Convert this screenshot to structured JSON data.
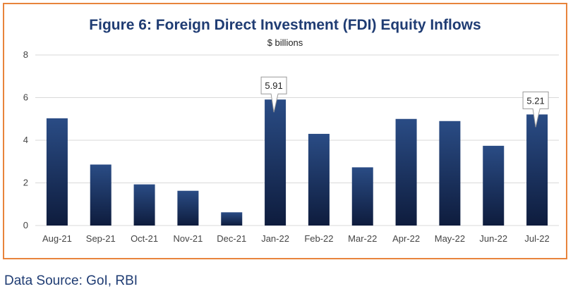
{
  "chart_data": {
    "type": "bar",
    "title": "Figure 6: Foreign Direct Investment (FDI) Equity Inflows",
    "subtitle": "$ billions",
    "categories": [
      "Aug-21",
      "Sep-21",
      "Oct-21",
      "Nov-21",
      "Dec-21",
      "Jan-22",
      "Feb-22",
      "Mar-22",
      "Apr-22",
      "May-22",
      "Jun-22",
      "Jul-22"
    ],
    "values": [
      5.03,
      2.86,
      1.93,
      1.63,
      0.62,
      5.91,
      4.3,
      2.73,
      5.0,
      4.9,
      3.74,
      5.21
    ],
    "ylim": [
      0,
      8
    ],
    "yticks": [
      0,
      2,
      4,
      6,
      8
    ],
    "grid": true,
    "legend": "none",
    "callouts": [
      {
        "index": 5,
        "label": "5.91"
      },
      {
        "index": 11,
        "label": "5.21"
      }
    ],
    "colors": {
      "bar_top": "#2a4c85",
      "bar_bottom": "#0e1c3d",
      "frame": "#e8843c",
      "title": "#1f3c73",
      "grid": "#d9d9d9"
    }
  },
  "footer": {
    "source": "Data Source: GoI, RBI"
  }
}
